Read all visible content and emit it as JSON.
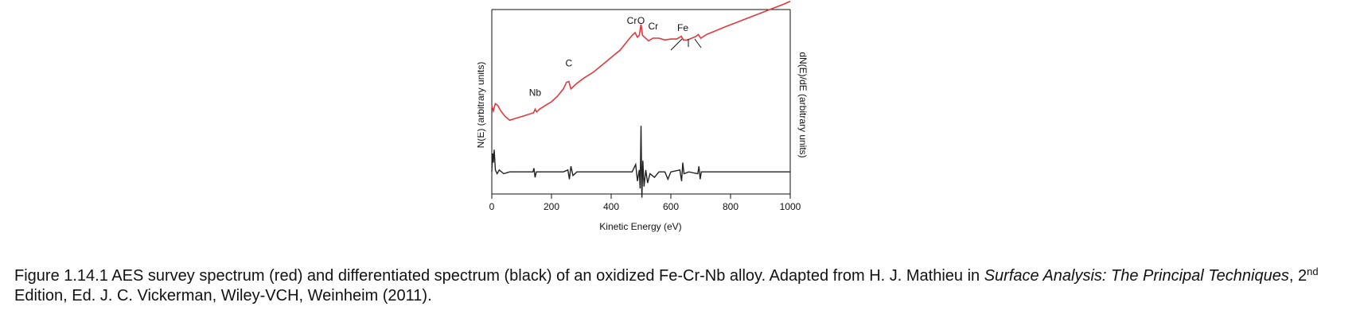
{
  "chart_data": {
    "type": "line",
    "xlabel": "Kinetic Energy (eV)",
    "ylabel_left": "N(E) (arbitrary units)",
    "ylabel_right": "dN(E)/dE (arbitrary units)",
    "xlim": [
      0,
      1000
    ],
    "ylim": [
      0,
      100
    ],
    "xticks": [
      0,
      200,
      400,
      600,
      800,
      1000
    ],
    "grid": false,
    "colors": {
      "N(E)": "#e0393e",
      "dN(E)/dE": "#222222"
    },
    "series": [
      {
        "x": [
          0,
          5,
          12,
          20,
          30,
          45,
          60,
          80,
          100,
          120,
          140,
          145,
          150,
          160,
          180,
          200,
          220,
          240,
          250,
          258,
          265,
          272,
          285,
          310,
          340,
          370,
          400,
          430,
          455,
          470,
          480,
          488,
          494,
          500,
          505,
          512,
          525,
          540,
          560,
          580,
          600,
          620,
          635,
          642,
          655,
          670,
          685,
          692,
          700,
          720,
          750,
          780,
          820,
          860,
          900,
          940,
          980,
          1000
        ],
        "values": [
          48,
          45,
          49,
          48,
          45,
          42,
          40,
          41,
          42,
          43,
          44,
          46,
          44.5,
          46,
          48,
          50,
          53,
          57,
          60.5,
          61,
          57,
          58,
          60,
          63,
          66,
          70,
          74,
          78,
          83,
          86,
          87.5,
          85,
          86,
          92,
          86,
          85,
          83,
          84.5,
          84.5,
          83.5,
          84,
          84,
          85.5,
          83.5,
          83.5,
          84.5,
          85.5,
          86.5,
          84.5,
          86.5,
          88.5,
          90.5,
          93,
          95.5,
          98,
          100.5,
          103,
          104.5
        ]
      },
      {
        "x": [
          0,
          3,
          5,
          8,
          12,
          18,
          25,
          40,
          60,
          100,
          138,
          141,
          145,
          149,
          160,
          200,
          240,
          255,
          260,
          265,
          272,
          285,
          320,
          360,
          400,
          440,
          470,
          482,
          488,
          494,
          497,
          500,
          503,
          506,
          510,
          516,
          522,
          530,
          545,
          560,
          580,
          590,
          600,
          630,
          636,
          640,
          644,
          660,
          690,
          694,
          698,
          702,
          720,
          760,
          800,
          850,
          900,
          950,
          1000
        ],
        "values": [
          12,
          22,
          17,
          24,
          13,
          11,
          13,
          11,
          12,
          12,
          12,
          14,
          9,
          12,
          12,
          12,
          12,
          13,
          8,
          15,
          10,
          12,
          12,
          12,
          12,
          12,
          12,
          16,
          7,
          13,
          3,
          37,
          -2,
          18,
          4,
          13,
          6,
          11,
          9,
          12,
          12,
          8,
          12,
          13,
          7,
          17,
          11,
          12,
          11,
          15,
          8,
          12,
          12,
          12,
          12,
          12,
          12,
          12,
          12
        ]
      }
    ],
    "annotations": [
      {
        "text": "Nb",
        "x": 145
      },
      {
        "text": "C",
        "x": 258
      },
      {
        "text": "Cr",
        "x": 480
      },
      {
        "text": "O",
        "x": 500
      },
      {
        "text": "Cr",
        "x": 530
      },
      {
        "text": "Fe",
        "x": 640
      }
    ]
  },
  "caption": {
    "prefix": "Figure 1.14.1 AES survey spectrum (red) and differentiated spectrum (black) of an oxidized Fe-Cr-Nb alloy. Adapted from H. J. Mathieu in ",
    "title_italic": "Surface Analysis: The Principal Techniques",
    "sep": ", ",
    "edition_num": "2",
    "edition_sup": "nd",
    "suffix": " Edition, Ed. J. C. Vickerman, Wiley-VCH, Weinheim (2011)."
  }
}
